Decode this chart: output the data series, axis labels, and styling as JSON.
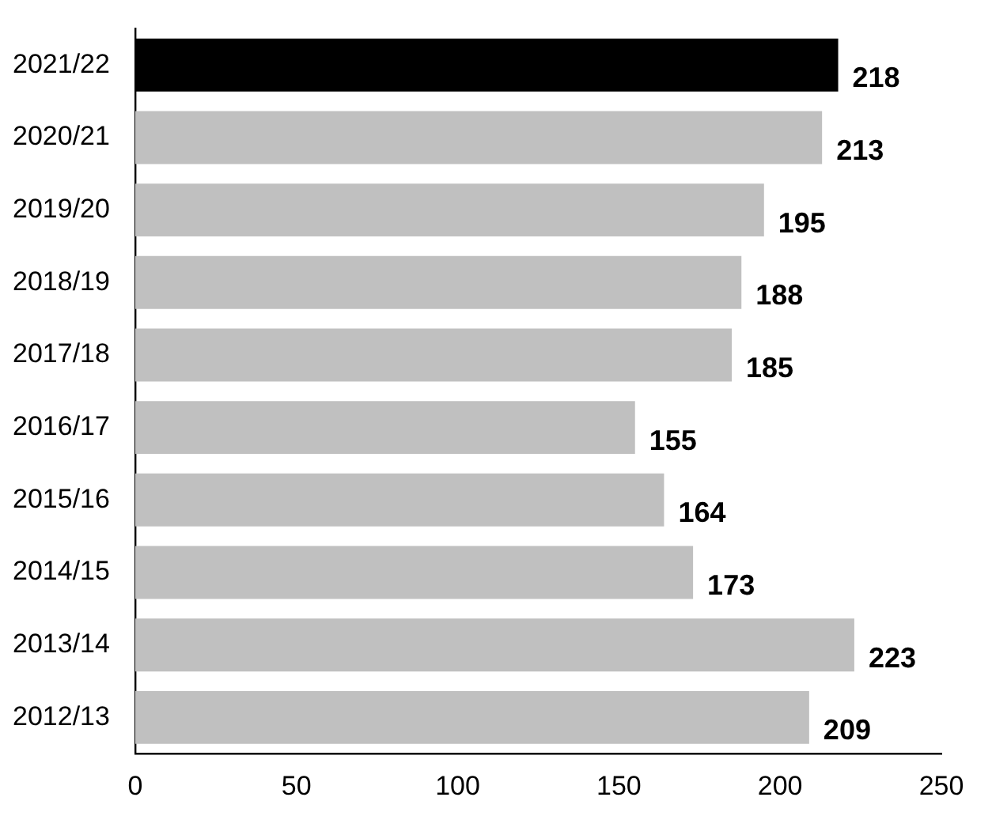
{
  "chart_data": {
    "type": "bar",
    "orientation": "horizontal",
    "categories": [
      "2021/22",
      "2020/21",
      "2019/20",
      "2018/19",
      "2017/18",
      "2016/17",
      "2015/16",
      "2014/15",
      "2013/14",
      "2012/13"
    ],
    "values": [
      218,
      213,
      195,
      188,
      185,
      155,
      164,
      173,
      223,
      209
    ],
    "colors": [
      "#000000",
      "#c0c0c0",
      "#c0c0c0",
      "#c0c0c0",
      "#c0c0c0",
      "#c0c0c0",
      "#c0c0c0",
      "#c0c0c0",
      "#c0c0c0",
      "#c0c0c0"
    ],
    "xlim": [
      0,
      250
    ],
    "xticks": [
      0,
      50,
      100,
      150,
      200,
      250
    ],
    "data_labels": true,
    "grid": false,
    "legend": false
  }
}
